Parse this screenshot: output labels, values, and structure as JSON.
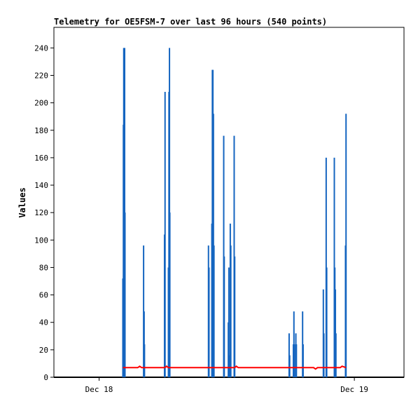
{
  "chart_data": {
    "type": "bar",
    "title": "Telemetry for OE5FSM-7 over last 96 hours (540 points)",
    "xlabel": "",
    "ylabel": "Values",
    "ylim": [
      0,
      255
    ],
    "xlim": [
      "Dec 17 19:45",
      "Dec 19 04:40"
    ],
    "x_ticks": [
      {
        "label": "Dec 18",
        "t": "Dec 18 00:00"
      },
      {
        "label": "Dec 19",
        "t": "Dec 19 00:00"
      }
    ],
    "y_ticks": [
      0,
      20,
      40,
      60,
      80,
      100,
      120,
      140,
      160,
      180,
      200,
      220,
      240
    ],
    "grid": false,
    "legend": "none",
    "colors": {
      "series_1": "#1565c0",
      "series_2": "#ff0000",
      "series_3": "#000000"
    },
    "series": [
      {
        "type": "spikes",
        "points": [
          [
            "Dec 18 02:14",
            72
          ],
          [
            "Dec 18 02:17",
            184
          ],
          [
            "Dec 18 02:19",
            240
          ],
          [
            "Dec 18 02:21",
            144
          ],
          [
            "Dec 18 02:24",
            240
          ],
          [
            "Dec 18 02:26",
            120
          ],
          [
            "Dec 18 04:11",
            96
          ],
          [
            "Dec 18 04:14",
            48
          ],
          [
            "Dec 18 04:16",
            24
          ],
          [
            "Dec 18 06:09",
            104
          ],
          [
            "Dec 18 06:12",
            208
          ],
          [
            "Dec 18 06:31",
            80
          ],
          [
            "Dec 18 06:34",
            208
          ],
          [
            "Dec 18 06:37",
            240
          ],
          [
            "Dec 18 06:39",
            120
          ],
          [
            "Dec 18 10:17",
            96
          ],
          [
            "Dec 18 10:20",
            80
          ],
          [
            "Dec 18 10:36",
            112
          ],
          [
            "Dec 18 10:39",
            224
          ],
          [
            "Dec 18 10:42",
            224
          ],
          [
            "Dec 18 10:45",
            192
          ],
          [
            "Dec 18 10:48",
            96
          ],
          [
            "Dec 18 11:43",
            176
          ],
          [
            "Dec 18 11:46",
            88
          ],
          [
            "Dec 18 12:09",
            40
          ],
          [
            "Dec 18 12:12",
            80
          ],
          [
            "Dec 18 12:14",
            16
          ],
          [
            "Dec 18 12:20",
            112
          ],
          [
            "Dec 18 12:23",
            96
          ],
          [
            "Dec 18 12:42",
            176
          ],
          [
            "Dec 18 12:45",
            88
          ],
          [
            "Dec 18 17:52",
            32
          ],
          [
            "Dec 18 17:55",
            16
          ],
          [
            "Dec 18 18:16",
            24
          ],
          [
            "Dec 18 18:19",
            48
          ],
          [
            "Dec 18 18:22",
            24
          ],
          [
            "Dec 18 18:30",
            32
          ],
          [
            "Dec 18 18:33",
            24
          ],
          [
            "Dec 18 19:08",
            48
          ],
          [
            "Dec 18 19:11",
            24
          ],
          [
            "Dec 18 21:05",
            64
          ],
          [
            "Dec 18 21:08",
            32
          ],
          [
            "Dec 18 21:21",
            160
          ],
          [
            "Dec 18 21:24",
            80
          ],
          [
            "Dec 18 22:07",
            160
          ],
          [
            "Dec 18 22:10",
            80
          ],
          [
            "Dec 18 22:13",
            64
          ],
          [
            "Dec 18 22:16",
            32
          ],
          [
            "Dec 18 23:10",
            96
          ],
          [
            "Dec 18 23:13",
            192
          ]
        ]
      },
      {
        "type": "line",
        "points": [
          [
            "Dec 18 02:14",
            7
          ],
          [
            "Dec 18 03:38",
            7
          ],
          [
            "Dec 18 03:49",
            8
          ],
          [
            "Dec 18 04:00",
            7
          ],
          [
            "Dec 18 06:10",
            7
          ],
          [
            "Dec 18 06:20",
            8
          ],
          [
            "Dec 18 06:31",
            7
          ],
          [
            "Dec 18 12:45",
            7
          ],
          [
            "Dec 18 12:54",
            8
          ],
          [
            "Dec 18 13:05",
            7
          ],
          [
            "Dec 18 20:10",
            7
          ],
          [
            "Dec 18 20:21",
            6
          ],
          [
            "Dec 18 20:32",
            7
          ],
          [
            "Dec 18 22:40",
            7
          ],
          [
            "Dec 18 22:51",
            8
          ],
          [
            "Dec 18 23:13",
            7
          ]
        ]
      },
      {
        "type": "line",
        "points": [
          [
            "Dec 17 19:45",
            0
          ],
          [
            "Dec 19 04:40",
            0
          ]
        ]
      }
    ]
  }
}
